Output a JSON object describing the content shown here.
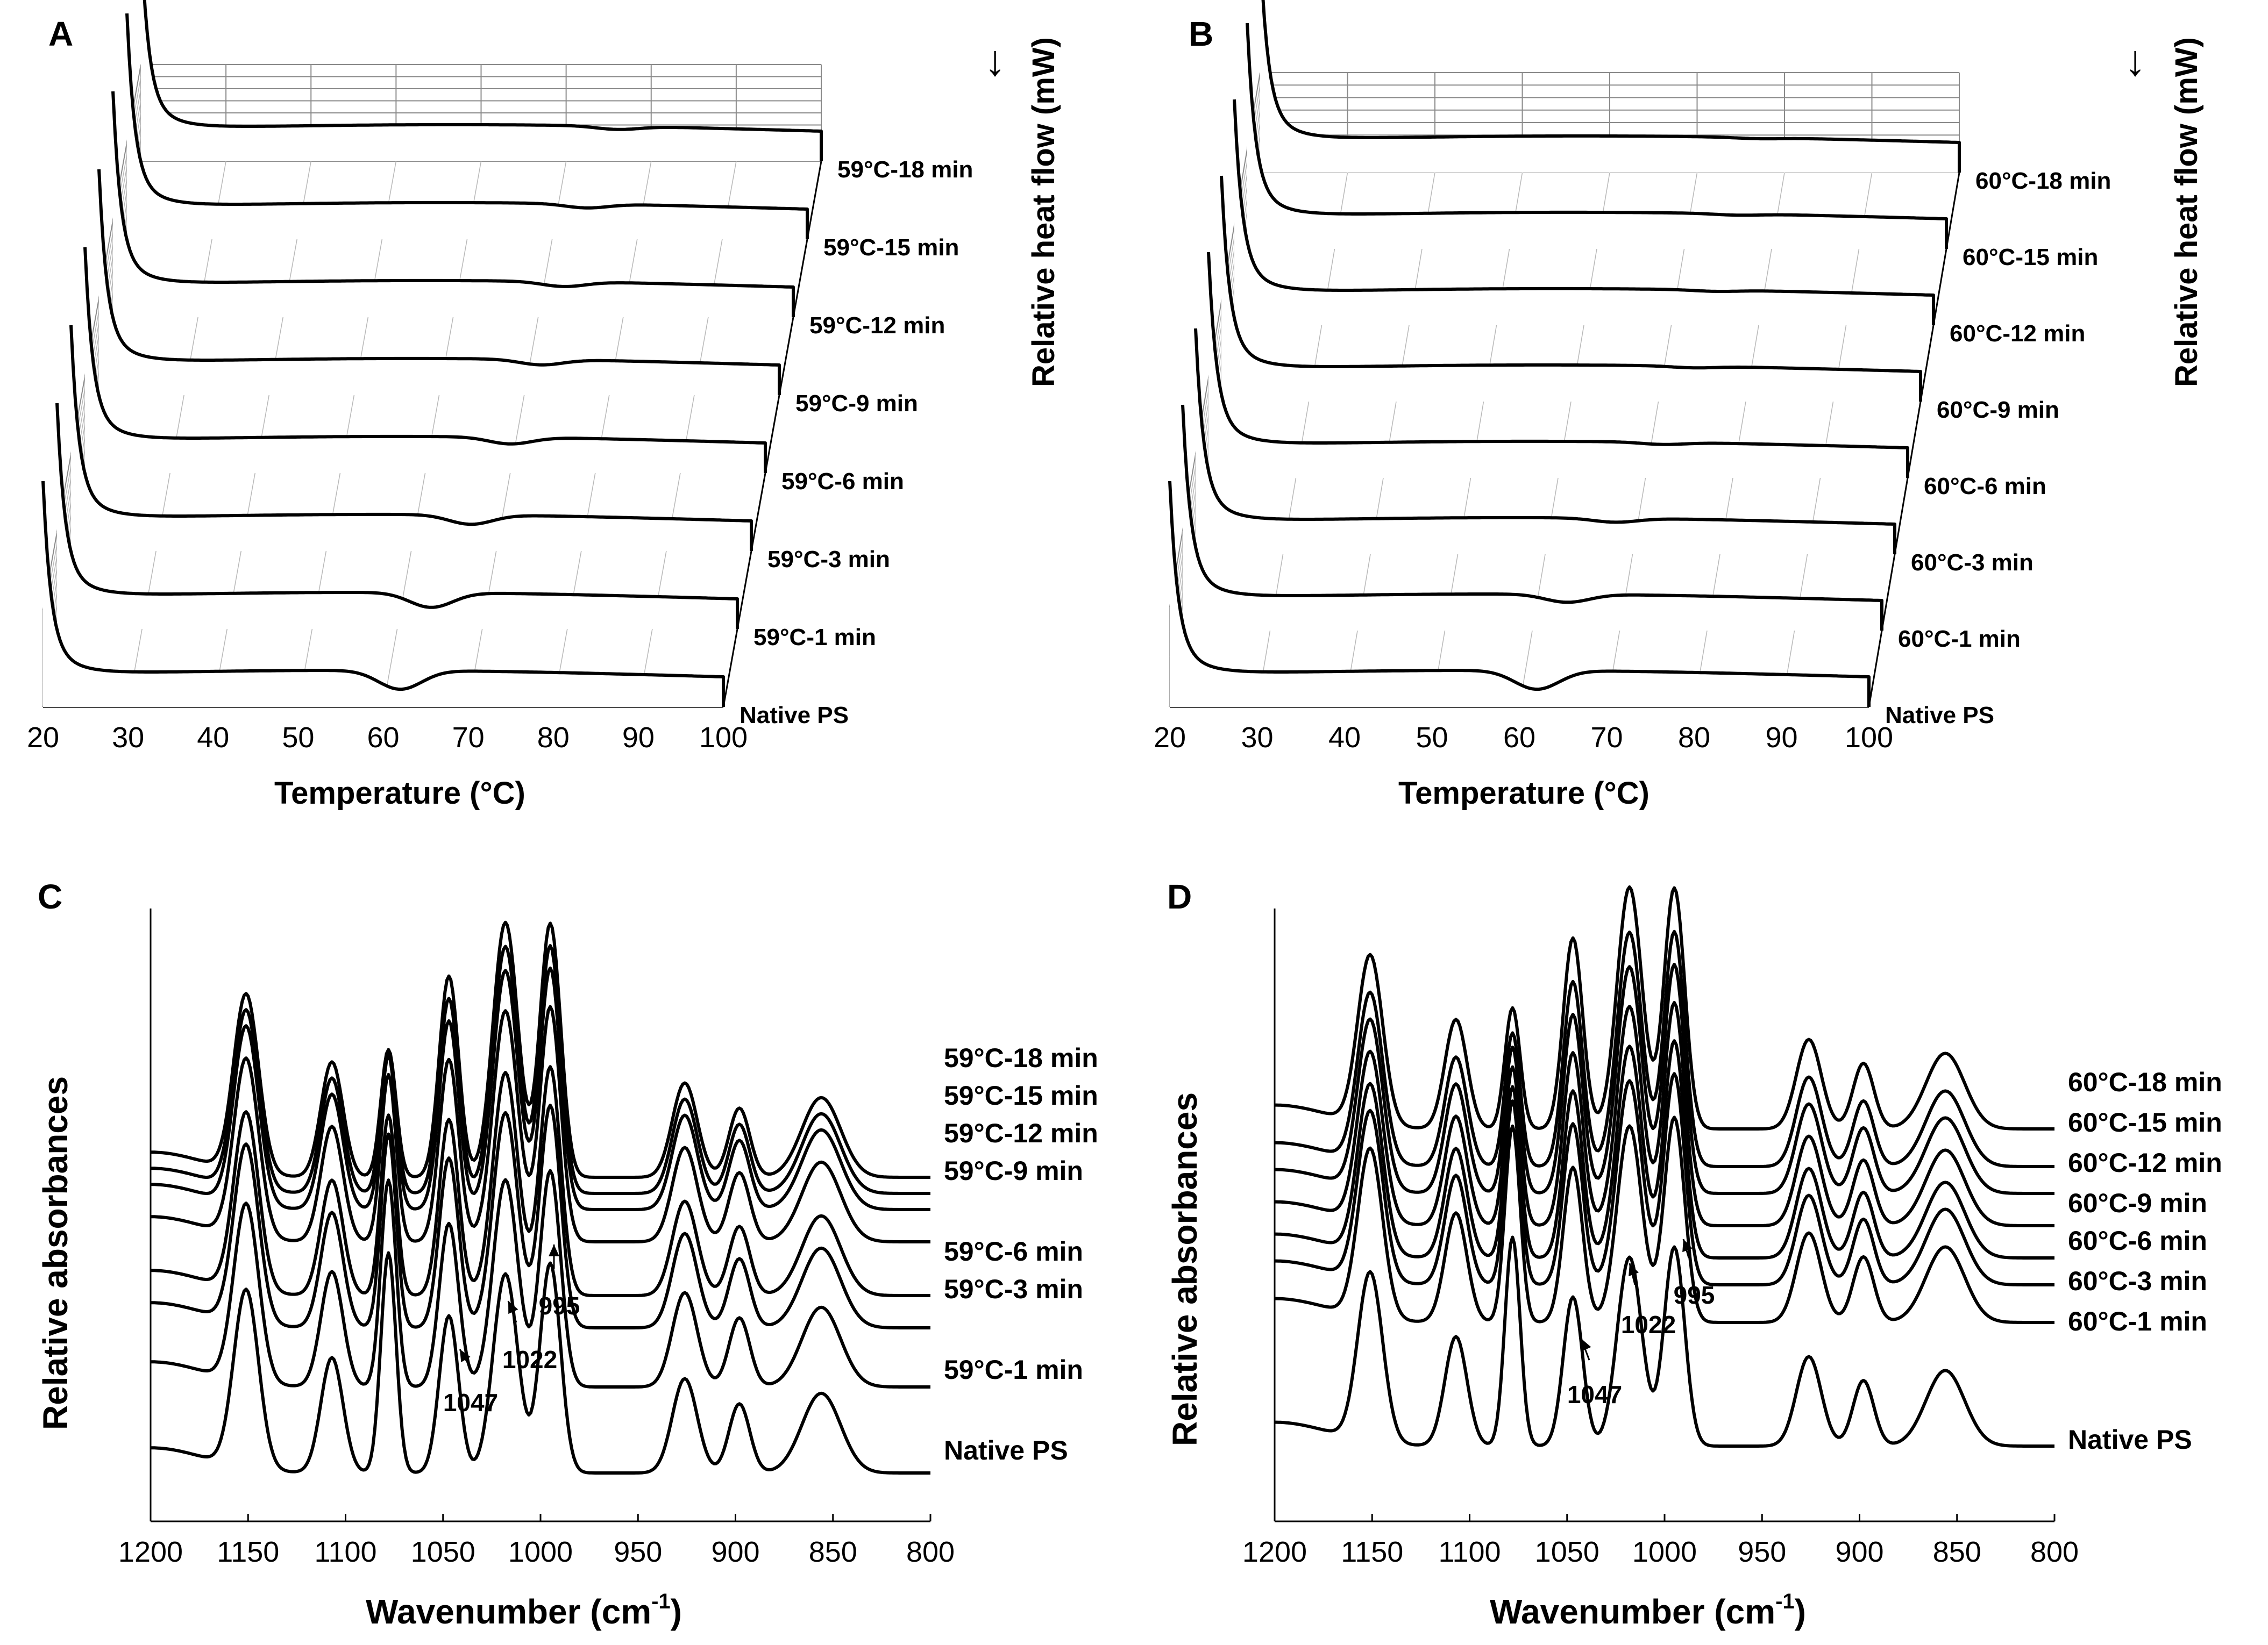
{
  "panels": {
    "A": {
      "letter": "A"
    },
    "B": {
      "letter": "B"
    },
    "C": {
      "letter": "C"
    },
    "D": {
      "letter": "D"
    }
  },
  "chart_data": [
    {
      "id": "A",
      "type": "line",
      "title": "",
      "xlabel": "Temperature (°C)",
      "ylabel": "Relative heat flow (mW)",
      "arrow": "↓",
      "xlim": [
        20,
        100
      ],
      "x_ticks": [
        "20",
        "30",
        "40",
        "50",
        "60",
        "70",
        "80",
        "90",
        "100"
      ],
      "series": [
        {
          "name": "Native PS",
          "dip_center": 62,
          "dip_depth": 0.7
        },
        {
          "name": "59°C-1 min",
          "dip_center": 64,
          "dip_depth": 0.55
        },
        {
          "name": "59°C-3 min",
          "dip_center": 67,
          "dip_depth": 0.35
        },
        {
          "name": "59°C-6 min",
          "dip_center": 70,
          "dip_depth": 0.25
        },
        {
          "name": "59°C-9 min",
          "dip_center": 72,
          "dip_depth": 0.2
        },
        {
          "name": "59°C-12 min",
          "dip_center": 73,
          "dip_depth": 0.18
        },
        {
          "name": "59°C-15 min",
          "dip_center": 74,
          "dip_depth": 0.15
        },
        {
          "name": "59°C-18 min",
          "dip_center": 76,
          "dip_depth": 0.12
        }
      ]
    },
    {
      "id": "B",
      "type": "line",
      "title": "",
      "xlabel": "Temperature (°C)",
      "ylabel": "Relative heat flow (mW)",
      "arrow": "↓",
      "xlim": [
        20,
        100
      ],
      "x_ticks": [
        "20",
        "30",
        "40",
        "50",
        "60",
        "70",
        "80",
        "90",
        "100"
      ],
      "series": [
        {
          "name": "Native PS",
          "dip_center": 62,
          "dip_depth": 0.7
        },
        {
          "name": "60°C-1 min",
          "dip_center": 64,
          "dip_depth": 0.3
        },
        {
          "name": "60°C-3 min",
          "dip_center": 68,
          "dip_depth": 0.15
        },
        {
          "name": "60°C-6 min",
          "dip_center": 72,
          "dip_depth": 0.08
        },
        {
          "name": "60°C-9 min",
          "dip_center": 74,
          "dip_depth": 0.06
        },
        {
          "name": "60°C-12 min",
          "dip_center": 75,
          "dip_depth": 0.05
        },
        {
          "name": "60°C-15 min",
          "dip_center": 76,
          "dip_depth": 0.05
        },
        {
          "name": "60°C-18 min",
          "dip_center": 77,
          "dip_depth": 0.04
        }
      ]
    },
    {
      "id": "C",
      "type": "line",
      "title": "",
      "xlabel": "Wavenumber (cm",
      "xlabel_sup": "-1",
      "xlabel_tail": ")",
      "ylabel": "Relative absorbances",
      "xlim": [
        1200,
        800
      ],
      "x_ticks": [
        "1200",
        "1150",
        "1100",
        "1050",
        "1000",
        "950",
        "900",
        "850",
        "800"
      ],
      "annotations": [
        "1047",
        "1022",
        "995"
      ],
      "series": [
        {
          "name": "Native PS",
          "offset": 0
        },
        {
          "name": "59°C-1 min",
          "offset": 1
        },
        {
          "name": "59°C-3 min",
          "offset": 2
        },
        {
          "name": "59°C-6 min",
          "offset": 3
        },
        {
          "name": "59°C-9 min",
          "offset": 4
        },
        {
          "name": "59°C-12 min",
          "offset": 5
        },
        {
          "name": "59°C-15 min",
          "offset": 6
        },
        {
          "name": "59°C-18 min",
          "offset": 7
        }
      ]
    },
    {
      "id": "D",
      "type": "line",
      "title": "",
      "xlabel": "Wavenumber (cm",
      "xlabel_sup": "-1",
      "xlabel_tail": ")",
      "ylabel": "Relative absorbances",
      "xlim": [
        1200,
        800
      ],
      "x_ticks": [
        "1200",
        "1150",
        "1100",
        "1050",
        "1000",
        "950",
        "900",
        "850",
        "800"
      ],
      "annotations": [
        "1047",
        "1022",
        "995"
      ],
      "series": [
        {
          "name": "Native PS",
          "offset": 0
        },
        {
          "name": "60°C-1 min",
          "offset": 1
        },
        {
          "name": "60°C-3 min",
          "offset": 2
        },
        {
          "name": "60°C-6 min",
          "offset": 3
        },
        {
          "name": "60°C-9 min",
          "offset": 4
        },
        {
          "name": "60°C-12 min",
          "offset": 5
        },
        {
          "name": "60°C-15 min",
          "offset": 6
        },
        {
          "name": "60°C-18 min",
          "offset": 7
        }
      ]
    }
  ]
}
